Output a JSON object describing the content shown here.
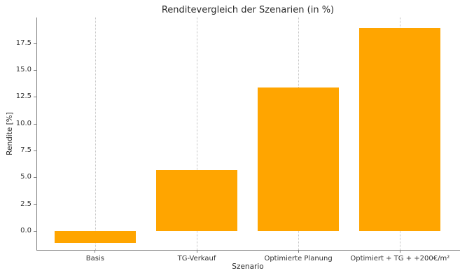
{
  "chart_data": {
    "type": "bar",
    "title": "Renditevergleich der Szenarien (in %)",
    "xlabel": "Szenario",
    "ylabel": "Rendite [%]",
    "categories": [
      "Basis",
      "TG-Verkauf",
      "Optimierte Planung",
      "Optimiert + TG + +200€/m²"
    ],
    "values": [
      -1.1,
      5.7,
      13.4,
      18.9
    ],
    "bar_color": "#FFA500",
    "bar_width": 0.8,
    "xlim": [
      -0.57,
      3.59
    ],
    "ylim": [
      -1.76,
      19.9
    ],
    "yticks": [
      0.0,
      2.5,
      5.0,
      7.5,
      10.0,
      12.5,
      15.0,
      17.5
    ],
    "ytick_labels": [
      "0.0",
      "2.5",
      "5.0",
      "7.5",
      "10.0",
      "12.5",
      "15.0",
      "17.5"
    ],
    "grid": "vertical-dotted",
    "grid_color": "#c2c2c2",
    "legend_position": "none",
    "spine_color": "#7f7f7f"
  }
}
